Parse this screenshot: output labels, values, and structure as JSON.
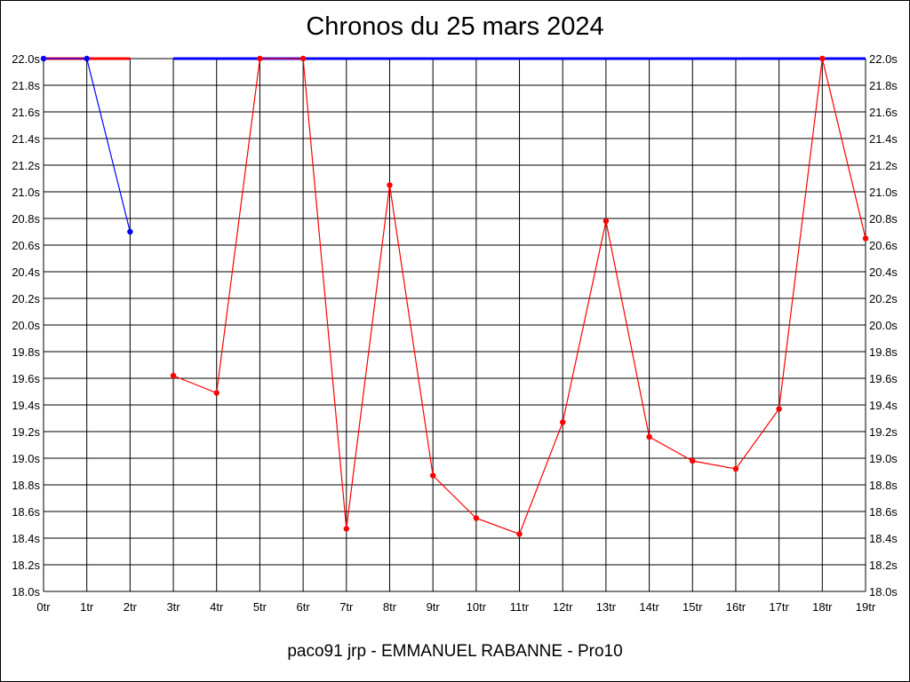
{
  "chart_data": {
    "type": "line",
    "title": "Chronos du 25 mars 2024",
    "subtitle": "paco91 jrp - EMMANUEL RABANNE - Pro10",
    "xlabel": "",
    "ylabel": "",
    "ylim": [
      18.0,
      22.0
    ],
    "y_ticks": [
      "18.0s",
      "18.2s",
      "18.4s",
      "18.6s",
      "18.8s",
      "19.0s",
      "19.2s",
      "19.4s",
      "19.6s",
      "19.8s",
      "20.0s",
      "20.2s",
      "20.4s",
      "20.6s",
      "20.8s",
      "21.0s",
      "21.2s",
      "21.4s",
      "21.6s",
      "21.8s",
      "22.0s"
    ],
    "categories": [
      "0tr",
      "1tr",
      "2tr",
      "3tr",
      "4tr",
      "5tr",
      "6tr",
      "7tr",
      "8tr",
      "9tr",
      "10tr",
      "11tr",
      "12tr",
      "13tr",
      "14tr",
      "15tr",
      "16tr",
      "17tr",
      "18tr",
      "19tr"
    ],
    "grid": true,
    "series": [
      {
        "color": "#0000ff",
        "points": [
          [
            0,
            22.0
          ],
          [
            1,
            22.0
          ],
          [
            2,
            20.7
          ]
        ]
      },
      {
        "color": "#ff0000",
        "points": [
          [
            3,
            19.62
          ],
          [
            4,
            19.49
          ],
          [
            5,
            22.0
          ],
          [
            6,
            22.0
          ],
          [
            7,
            18.47
          ],
          [
            8,
            21.05
          ],
          [
            9,
            18.87
          ],
          [
            10,
            18.55
          ],
          [
            11,
            18.43
          ],
          [
            12,
            19.27
          ],
          [
            13,
            20.78
          ],
          [
            14,
            19.16
          ],
          [
            15,
            18.98
          ],
          [
            16,
            18.92
          ],
          [
            17,
            19.37
          ],
          [
            18,
            22.0
          ],
          [
            19,
            20.65
          ]
        ]
      }
    ],
    "ceiling_bars": [
      {
        "color": "#ff0000",
        "from": 0,
        "to": 2
      },
      {
        "color": "#0000ff",
        "from": 3,
        "to": 19
      }
    ]
  }
}
